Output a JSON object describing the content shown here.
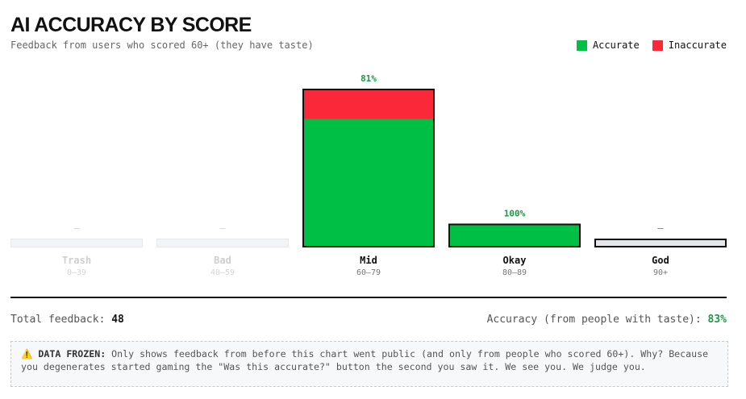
{
  "header": {
    "title": "AI ACCURACY BY SCORE",
    "subtitle": "Feedback from users who scored 60+ (they have taste)"
  },
  "legend": [
    {
      "label": "Accurate",
      "color": "#00bf45"
    },
    {
      "label": "Inaccurate",
      "color": "#fa2838"
    }
  ],
  "chart_data": {
    "type": "bar",
    "stacked": true,
    "categories": [
      "Trash",
      "Bad",
      "Mid",
      "Okay",
      "God"
    ],
    "ranges": [
      "0–39",
      "40–59",
      "60–79",
      "80–89",
      "90+"
    ],
    "active": [
      false,
      false,
      true,
      true,
      true
    ],
    "pct_labels": [
      "–",
      "–",
      "81%",
      "100%",
      "–"
    ],
    "relative_height": [
      0,
      0,
      1.0,
      0.15,
      0
    ],
    "accurate_share": [
      null,
      null,
      0.81,
      1.0,
      null
    ],
    "series": [
      {
        "name": "Accurate",
        "color": "#00bf45"
      },
      {
        "name": "Inaccurate",
        "color": "#fa2838"
      }
    ],
    "legend_position": "top-right"
  },
  "summary": {
    "total_label": "Total feedback:",
    "total_value": "48",
    "accuracy_label": "Accuracy (from people with taste):",
    "accuracy_value": "83%"
  },
  "notice": {
    "icon": "warning-icon",
    "icon_glyph": "⚠️",
    "heading": "DATA FROZEN:",
    "text": "Only shows feedback from before this chart went public (and only from people who scored 60+). Why? Because you degenerates started gaming the \"Was this accurate?\" button the second you saw it. We see you. We judge you."
  },
  "colors": {
    "accurate": "#00bf45",
    "inaccurate": "#fa2838",
    "empty_fill": "#f3f4f6",
    "empty_border": "#e6e8eb",
    "ink": "#111111",
    "pct_green": "#1a9a45"
  }
}
